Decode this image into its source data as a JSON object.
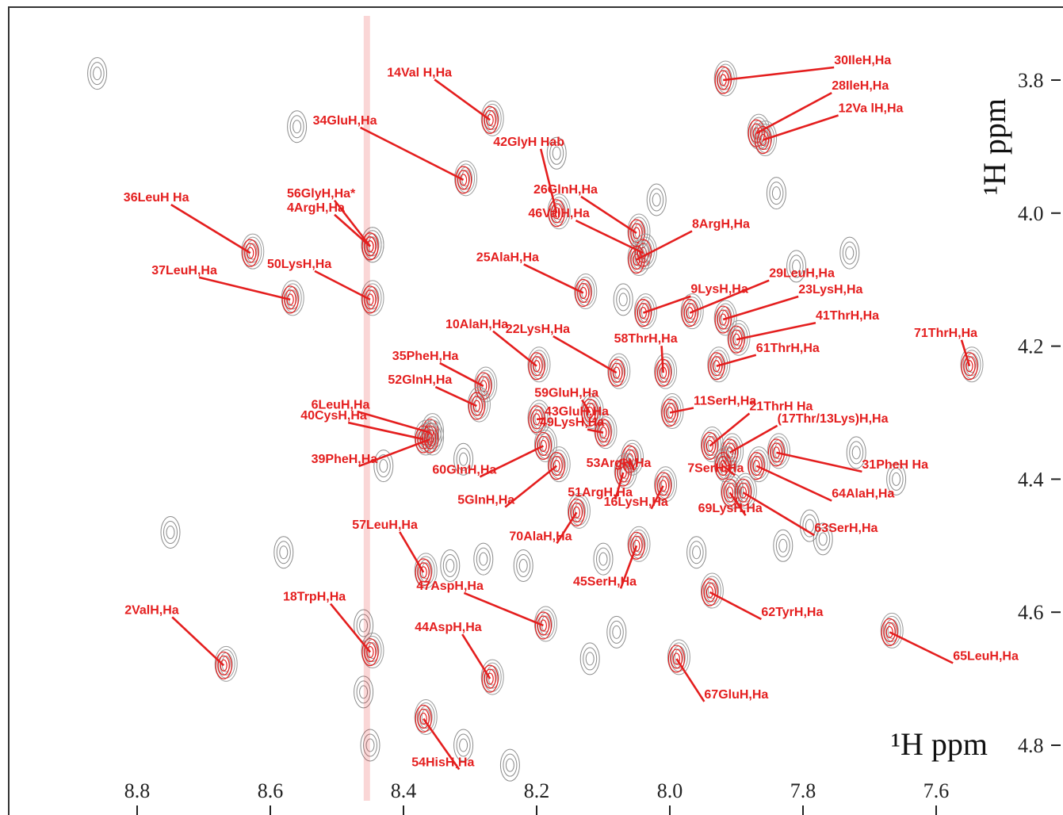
{
  "chart_data": {
    "type": "scatter",
    "title": "",
    "xlabel": "¹H ppm",
    "ylabel": "¹H ppm",
    "x_axis": {
      "min": 8.95,
      "max": 7.47,
      "reversed": true,
      "ticks": [
        8.8,
        8.6,
        8.4,
        8.2,
        8.0,
        7.8,
        7.6
      ],
      "tick_labels": [
        "8.8",
        "8.6",
        "8.4",
        "8.2",
        "8.0",
        "7.8",
        "7.6"
      ]
    },
    "y_axis": {
      "min": 3.72,
      "max": 4.9,
      "reversed": true,
      "ticks": [
        3.8,
        4.0,
        4.2,
        4.4,
        4.6,
        4.8
      ],
      "tick_labels": [
        "3.8",
        "4.0",
        "4.2",
        "4.4",
        "4.6",
        "4.8"
      ],
      "side": "right"
    },
    "series": [
      {
        "name": "",
        "color": "#e41e1e",
        "points": [
          {
            "label": "14Val H,Ha",
            "x": 8.27,
            "y": 3.86
          },
          {
            "label": "30IleH,Ha",
            "x": 7.92,
            "y": 3.8
          },
          {
            "label": "28IleH,Ha",
            "x": 7.87,
            "y": 3.88
          },
          {
            "label": "12Va lH,Ha",
            "x": 7.86,
            "y": 3.89
          },
          {
            "label": "34GluH,Ha",
            "x": 8.31,
            "y": 3.95
          },
          {
            "label": "42GlyH Hab",
            "x": 8.17,
            "y": 4.0
          },
          {
            "label": "26GlnH,Ha",
            "x": 8.05,
            "y": 4.03
          },
          {
            "label": "36LeuH Ha",
            "x": 8.63,
            "y": 4.06
          },
          {
            "label": "56GlyH,Ha*",
            "x": 8.45,
            "y": 4.05
          },
          {
            "label": "4ArgH,Ha",
            "x": 8.45,
            "y": 4.05
          },
          {
            "label": "46ValH,Ha",
            "x": 8.04,
            "y": 4.06
          },
          {
            "label": "8ArgH,Ha",
            "x": 8.05,
            "y": 4.07
          },
          {
            "label": "37LeuH,Ha",
            "x": 8.57,
            "y": 4.13
          },
          {
            "label": "50LysH,Ha",
            "x": 8.45,
            "y": 4.13
          },
          {
            "label": "25AlaH,Ha",
            "x": 8.13,
            "y": 4.12
          },
          {
            "label": "9LysH,Ha",
            "x": 8.04,
            "y": 4.15
          },
          {
            "label": "29LeuH,Ha",
            "x": 7.97,
            "y": 4.15
          },
          {
            "label": "23LysH,Ha",
            "x": 7.92,
            "y": 4.16
          },
          {
            "label": "41ThrH,Ha",
            "x": 7.9,
            "y": 4.19
          },
          {
            "label": "10AlaH,Ha",
            "x": 8.2,
            "y": 4.23
          },
          {
            "label": "22LysH,Ha",
            "x": 8.08,
            "y": 4.24
          },
          {
            "label": "58ThrH,Ha",
            "x": 8.01,
            "y": 4.24
          },
          {
            "label": "61ThrH,Ha",
            "x": 7.93,
            "y": 4.23
          },
          {
            "label": "71ThrH,Ha",
            "x": 7.55,
            "y": 4.23
          },
          {
            "label": "35PheH,Ha",
            "x": 8.28,
            "y": 4.26
          },
          {
            "label": "52GlnH,Ha",
            "x": 8.29,
            "y": 4.29
          },
          {
            "label": "6LeuH,Ha",
            "x": 8.36,
            "y": 4.33
          },
          {
            "label": "59GluH,Ha",
            "x": 8.12,
            "y": 4.3
          },
          {
            "label": "43GluH,Ha",
            "x": 8.2,
            "y": 4.31
          },
          {
            "label": "11SerH,Ha",
            "x": 8.0,
            "y": 4.3
          },
          {
            "label": "40CysH,Ha",
            "x": 8.37,
            "y": 4.34
          },
          {
            "label": "49LysH,Ha",
            "x": 8.1,
            "y": 4.33
          },
          {
            "label": "21ThrH Ha",
            "x": 7.94,
            "y": 4.35
          },
          {
            "label": "(17Thr/13Lys)H,Ha",
            "x": 7.91,
            "y": 4.36
          },
          {
            "label": "39PheH,Ha",
            "x": 8.36,
            "y": 4.34
          },
          {
            "label": "60GlnH,Ha",
            "x": 8.19,
            "y": 4.35
          },
          {
            "label": "5GlnH,Ha",
            "x": 8.17,
            "y": 4.38
          },
          {
            "label": "53ArgH,Ha",
            "x": 8.06,
            "y": 4.37
          },
          {
            "label": "7SerH,Ha",
            "x": 7.92,
            "y": 4.38
          },
          {
            "label": "31PheH Ha",
            "x": 7.84,
            "y": 4.36
          },
          {
            "label": "51ArgH,Ha",
            "x": 8.07,
            "y": 4.39
          },
          {
            "label": "64AlaH,Ha",
            "x": 7.87,
            "y": 4.38
          },
          {
            "label": "16LysH,Ha",
            "x": 8.01,
            "y": 4.41
          },
          {
            "label": "69LysH,Ha",
            "x": 7.91,
            "y": 4.42
          },
          {
            "label": "63SerH,Ha",
            "x": 7.89,
            "y": 4.42
          },
          {
            "label": "57LeuH,Ha",
            "x": 8.37,
            "y": 4.54
          },
          {
            "label": "70AlaH,Ha",
            "x": 8.14,
            "y": 4.45
          },
          {
            "label": "45SerH,Ha",
            "x": 8.05,
            "y": 4.5
          },
          {
            "label": "47AspH,Ha",
            "x": 8.19,
            "y": 4.62
          },
          {
            "label": "62TyrH,Ha",
            "x": 7.94,
            "y": 4.57
          },
          {
            "label": "18TrpH,Ha",
            "x": 8.45,
            "y": 4.66
          },
          {
            "label": "44AspH,Ha",
            "x": 8.27,
            "y": 4.7
          },
          {
            "label": "2ValH,Ha",
            "x": 8.67,
            "y": 4.68
          },
          {
            "label": "67GluH,Ha",
            "x": 7.99,
            "y": 4.67
          },
          {
            "label": "65LeuH,Ha",
            "x": 7.67,
            "y": 4.63
          },
          {
            "label": "54HisH,Ha",
            "x": 8.37,
            "y": 4.76
          }
        ]
      }
    ],
    "grid": false,
    "legend": "none"
  }
}
